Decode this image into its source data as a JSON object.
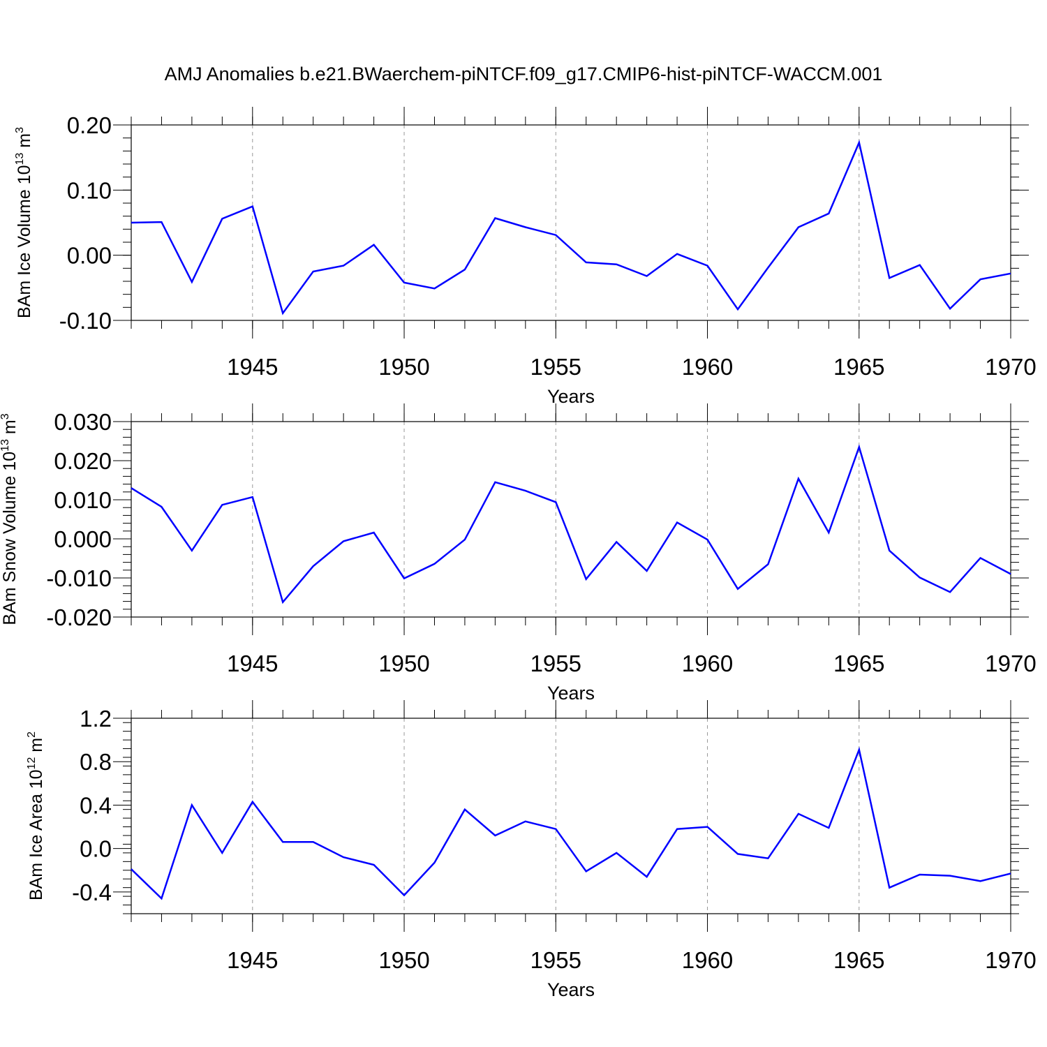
{
  "figure": {
    "title": "AMJ Anomalies b.e21.BWaerchem-piNTCF.f09_g17.CMIP6-hist-piNTCF-WACCM.001"
  },
  "chart_data": [
    {
      "type": "line",
      "panel": "ice-volume",
      "ylabel": "BAm Ice Volume 10",
      "ylabel_sup": "13",
      "ylabel_unit": " m",
      "ylabel_unit_sup": "3",
      "xlabel": "Years",
      "xlim": [
        1941,
        1970
      ],
      "ylim": [
        -0.1,
        0.2
      ],
      "yticks": [
        0.2,
        0.1,
        0.0,
        -0.1
      ],
      "ytick_labels": [
        "0.20",
        "0.10",
        "0.00",
        "-0.10"
      ],
      "xticks": [
        1945,
        1950,
        1955,
        1960,
        1965,
        1970
      ],
      "xtick_labels": [
        "1945",
        "1950",
        "1955",
        "1960",
        "1965",
        "1970"
      ],
      "x": [
        1941,
        1942,
        1943,
        1944,
        1945,
        1946,
        1947,
        1948,
        1949,
        1950,
        1951,
        1952,
        1953,
        1954,
        1955,
        1956,
        1957,
        1958,
        1959,
        1960,
        1961,
        1962,
        1963,
        1964,
        1965,
        1966,
        1967,
        1968,
        1969,
        1970
      ],
      "series": [
        {
          "name": "BAm Ice Volume",
          "color": "#0000ff",
          "values": [
            0.05,
            0.051,
            -0.041,
            0.056,
            0.075,
            -0.089,
            -0.025,
            -0.016,
            0.016,
            -0.042,
            -0.051,
            -0.022,
            0.057,
            0.043,
            0.031,
            -0.011,
            -0.014,
            -0.032,
            0.002,
            -0.016,
            -0.083,
            -0.019,
            0.043,
            0.064,
            0.173,
            -0.035,
            -0.015,
            -0.082,
            -0.037,
            -0.028
          ]
        }
      ]
    },
    {
      "type": "line",
      "panel": "snow-volume",
      "ylabel": "BAm Snow Volume 10",
      "ylabel_sup": "13",
      "ylabel_unit": " m",
      "ylabel_unit_sup": "3",
      "xlabel": "Years",
      "xlim": [
        1941,
        1970
      ],
      "ylim": [
        -0.02,
        0.03
      ],
      "yticks": [
        0.03,
        0.02,
        0.01,
        0.0,
        -0.01,
        -0.02
      ],
      "ytick_labels": [
        "0.030",
        "0.020",
        "0.010",
        "0.000",
        "-0.010",
        "-0.020"
      ],
      "xticks": [
        1945,
        1950,
        1955,
        1960,
        1965,
        1970
      ],
      "xtick_labels": [
        "1945",
        "1950",
        "1955",
        "1960",
        "1965",
        "1970"
      ],
      "x": [
        1941,
        1942,
        1943,
        1944,
        1945,
        1946,
        1947,
        1948,
        1949,
        1950,
        1951,
        1952,
        1953,
        1954,
        1955,
        1956,
        1957,
        1958,
        1959,
        1960,
        1961,
        1962,
        1963,
        1964,
        1965,
        1966,
        1967,
        1968,
        1969,
        1970
      ],
      "series": [
        {
          "name": "BAm Snow Volume",
          "color": "#0000ff",
          "values": [
            0.013,
            0.0082,
            -0.003,
            0.0087,
            0.0107,
            -0.0162,
            -0.007,
            -0.0006,
            0.0016,
            -0.0101,
            -0.0064,
            -0.0002,
            0.0145,
            0.0123,
            0.0094,
            -0.0103,
            -0.0008,
            -0.0082,
            0.0042,
            -0.0002,
            -0.0128,
            -0.0065,
            0.0154,
            0.0016,
            0.0235,
            -0.003,
            -0.0099,
            -0.0136,
            -0.0049,
            -0.009
          ]
        }
      ]
    },
    {
      "type": "line",
      "panel": "ice-area",
      "ylabel": "BAm Ice Area 10",
      "ylabel_sup": "12",
      "ylabel_unit": " m",
      "ylabel_unit_sup": "2",
      "xlabel": "Years",
      "xlim": [
        1941,
        1970
      ],
      "ylim": [
        -0.6,
        1.2
      ],
      "yticks": [
        1.2,
        0.8,
        0.4,
        0.0,
        -0.4
      ],
      "ytick_labels": [
        "1.2",
        "0.8",
        "0.4",
        "0.0",
        "-0.4"
      ],
      "xticks": [
        1945,
        1950,
        1955,
        1960,
        1965,
        1970
      ],
      "xtick_labels": [
        "1945",
        "1950",
        "1955",
        "1960",
        "1965",
        "1970"
      ],
      "x": [
        1941,
        1942,
        1943,
        1944,
        1945,
        1946,
        1947,
        1948,
        1949,
        1950,
        1951,
        1952,
        1953,
        1954,
        1955,
        1956,
        1957,
        1958,
        1959,
        1960,
        1961,
        1962,
        1963,
        1964,
        1965,
        1966,
        1967,
        1968,
        1969,
        1970
      ],
      "series": [
        {
          "name": "BAm Ice Area",
          "color": "#0000ff",
          "values": [
            -0.19,
            -0.46,
            0.4,
            -0.04,
            0.43,
            0.06,
            0.06,
            -0.08,
            -0.15,
            -0.43,
            -0.13,
            0.36,
            0.12,
            0.25,
            0.18,
            -0.21,
            -0.04,
            -0.26,
            0.18,
            0.2,
            -0.05,
            -0.09,
            0.32,
            0.19,
            0.91,
            -0.36,
            -0.24,
            -0.25,
            -0.3,
            -0.23
          ]
        }
      ]
    }
  ]
}
